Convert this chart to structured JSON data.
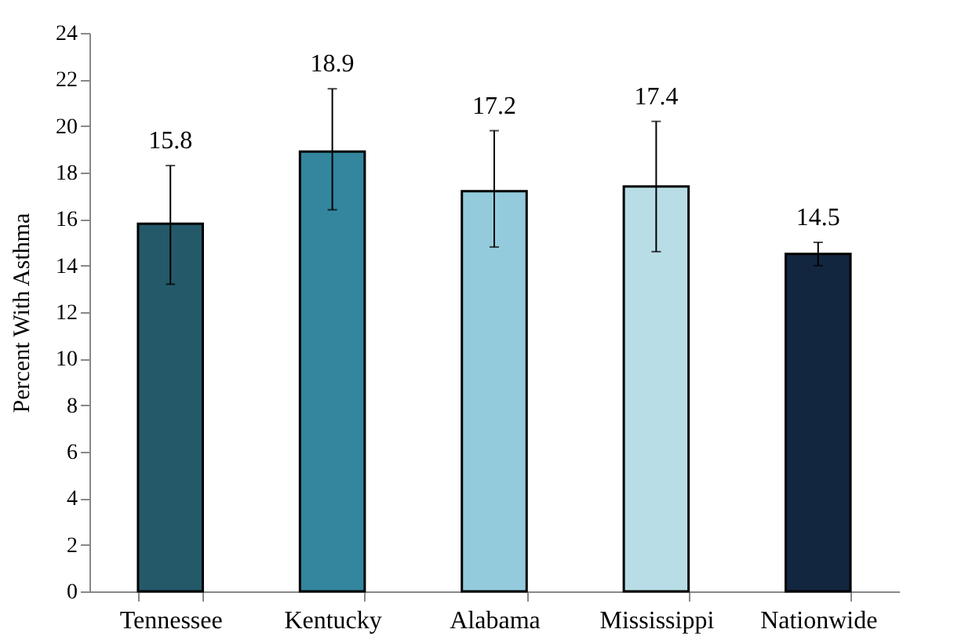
{
  "chart_data": {
    "type": "bar",
    "ylabel": "Percent With Asthma",
    "categories": [
      "Tennessee",
      "Kentucky",
      "Alabama",
      "Mississippi",
      "Nationwide"
    ],
    "values": [
      15.8,
      18.9,
      17.2,
      17.4,
      14.5
    ],
    "colors": [
      "#24596a",
      "#33869e",
      "#93cbdc",
      "#b8dde6",
      "#13263f"
    ],
    "errors": [
      [
        13.2,
        18.3
      ],
      [
        16.4,
        21.6
      ],
      [
        14.8,
        19.8
      ],
      [
        14.6,
        20.2
      ],
      [
        14.0,
        15.0
      ]
    ],
    "ylim": [
      0,
      24
    ],
    "yticks": [
      0,
      2,
      4,
      6,
      8,
      10,
      12,
      14,
      16,
      18,
      20,
      22,
      24
    ],
    "data_labels": true,
    "grid": false,
    "legend": false
  }
}
